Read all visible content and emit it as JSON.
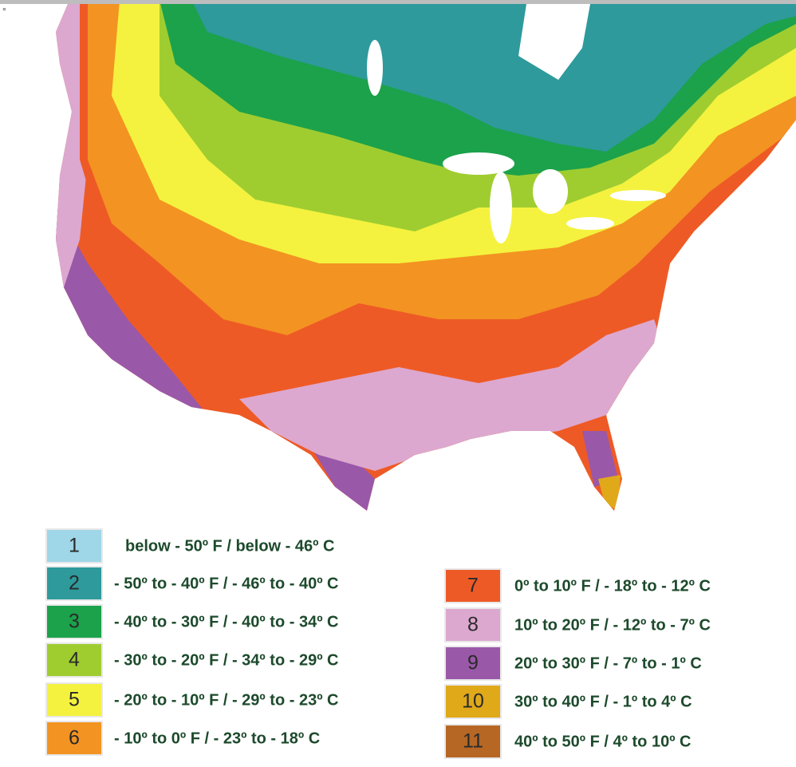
{
  "corner_mark": "°",
  "legend": [
    {
      "zone": "1",
      "label": "below - 50º F / below - 46º C",
      "color": "#9fd6e8"
    },
    {
      "zone": "2",
      "label": "- 50º to - 40º F / - 46º to - 40º C",
      "color": "#2e9a9c"
    },
    {
      "zone": "3",
      "label": "- 40º to - 30º F / - 40º to - 34º C",
      "color": "#1ba24b"
    },
    {
      "zone": "4",
      "label": "- 30º to - 20º F / - 34º to - 29º C",
      "color": "#9fcd30"
    },
    {
      "zone": "5",
      "label": "- 20º to - 10º F / - 29º to - 23º C",
      "color": "#f4f23e"
    },
    {
      "zone": "6",
      "label": "- 10º to 0º F / - 23º to - 18º C",
      "color": "#f39322"
    },
    {
      "zone": "7",
      "label": "0º to 10º F / - 18º to - 12º C",
      "color": "#ee5a26"
    },
    {
      "zone": "8",
      "label": "10º to 20º F / - 12º to - 7º C",
      "color": "#dca8cf"
    },
    {
      "zone": "9",
      "label": "20º to 30º F / - 7º to - 1º C",
      "color": "#9a58a8"
    },
    {
      "zone": "10",
      "label": "30º to 40º F / - 1º to 4º C",
      "color": "#e0a91a"
    },
    {
      "zone": "11",
      "label": "40º to 50º F / 4º to 10º C",
      "color": "#b66724"
    }
  ]
}
